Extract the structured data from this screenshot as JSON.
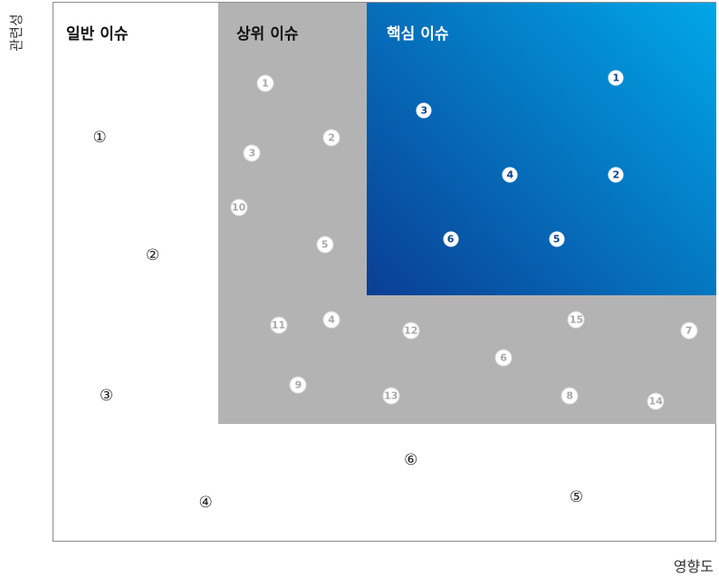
{
  "chart_data": {
    "type": "scatter",
    "title": "",
    "xlabel": "영향도",
    "ylabel": "관련성",
    "regions": [
      {
        "name": "일반 이슈",
        "color": "#ffffff"
      },
      {
        "name": "상위 이슈",
        "color": "#b3b3b3"
      },
      {
        "name": "핵심 이슈",
        "color_start": "#00a7e8",
        "color_end": "#0a3e94"
      }
    ],
    "series": [
      {
        "name": "핵심 이슈",
        "points": [
          {
            "label": "1",
            "x": 85,
            "y": 86
          },
          {
            "label": "2",
            "x": 85,
            "y": 68
          },
          {
            "label": "3",
            "x": 56,
            "y": 80
          },
          {
            "label": "4",
            "x": 69,
            "y": 68
          },
          {
            "label": "5",
            "x": 76,
            "y": 56
          },
          {
            "label": "6",
            "x": 60,
            "y": 56
          }
        ]
      },
      {
        "name": "상위 이슈",
        "points": [
          {
            "label": "1",
            "x": 32,
            "y": 85
          },
          {
            "label": "2",
            "x": 42,
            "y": 75
          },
          {
            "label": "3",
            "x": 30,
            "y": 72
          },
          {
            "label": "4",
            "x": 42,
            "y": 41
          },
          {
            "label": "5",
            "x": 41,
            "y": 55
          },
          {
            "label": "6",
            "x": 68,
            "y": 34
          },
          {
            "label": "7",
            "x": 96,
            "y": 39
          },
          {
            "label": "8",
            "x": 78,
            "y": 27
          },
          {
            "label": "9",
            "x": 37,
            "y": 29
          },
          {
            "label": "10",
            "x": 28,
            "y": 62
          },
          {
            "label": "11",
            "x": 34,
            "y": 40
          },
          {
            "label": "12",
            "x": 54,
            "y": 39
          },
          {
            "label": "13",
            "x": 51,
            "y": 27
          },
          {
            "label": "14",
            "x": 91,
            "y": 26
          },
          {
            "label": "15",
            "x": 79,
            "y": 41
          }
        ]
      },
      {
        "name": "일반 이슈",
        "points": [
          {
            "label": "①",
            "x": 7,
            "y": 75
          },
          {
            "label": "②",
            "x": 15,
            "y": 53
          },
          {
            "label": "③",
            "x": 8,
            "y": 27
          },
          {
            "label": "④",
            "x": 23,
            "y": 7
          },
          {
            "label": "⑤",
            "x": 79,
            "y": 8
          },
          {
            "label": "⑥",
            "x": 54,
            "y": 15
          }
        ]
      }
    ],
    "xlim": [
      0,
      100
    ],
    "ylim": [
      0,
      100
    ],
    "grid": false,
    "legend": "none"
  }
}
